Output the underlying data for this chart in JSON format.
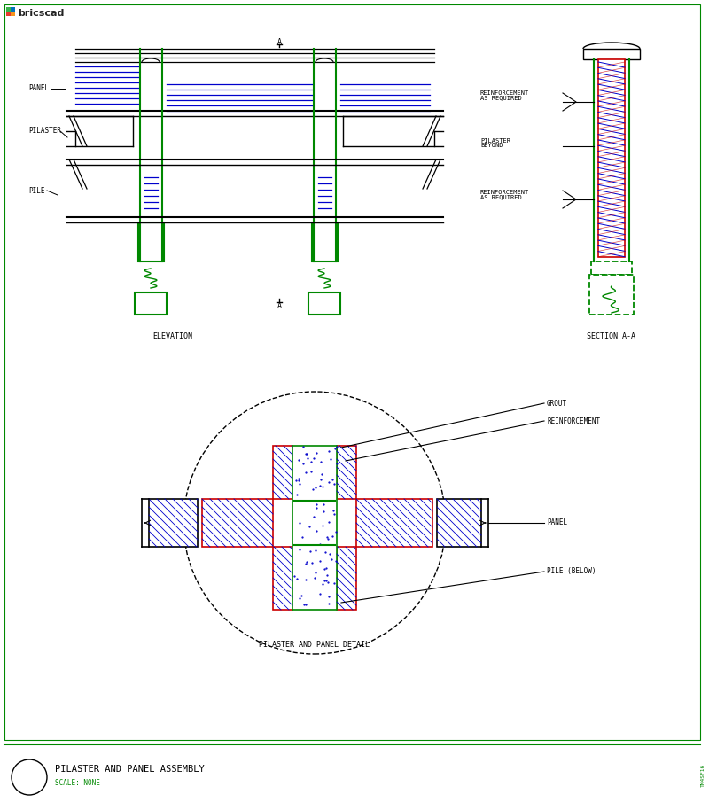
{
  "title": "PILASTER AND PANEL ASSEMBLY",
  "scale_text": "SCALE: NONE",
  "background_color": "#ffffff",
  "line_color": "#000000",
  "green_color": "#008800",
  "blue_color": "#0000cc",
  "red_color": "#cc0000",
  "elevation_label": "ELEVATION",
  "section_label": "SECTION A-A",
  "detail_label": "PILASTER AND PANEL DETAIL",
  "font_size": 5.5,
  "title_font_size": 7.5
}
